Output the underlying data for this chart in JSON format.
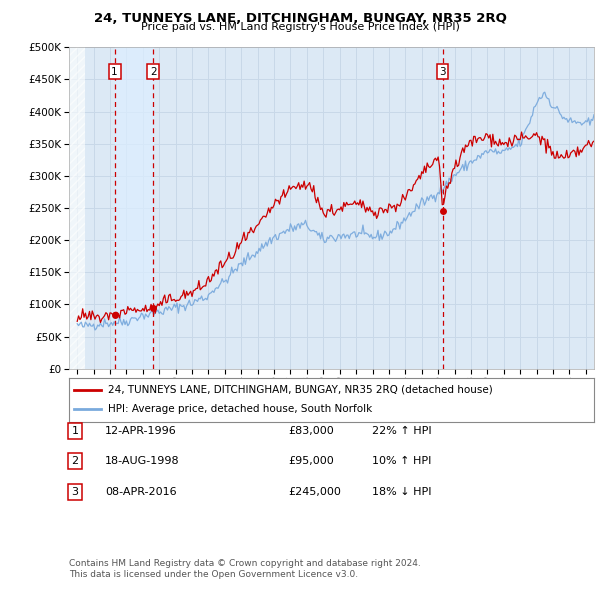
{
  "title": "24, TUNNEYS LANE, DITCHINGHAM, BUNGAY, NR35 2RQ",
  "subtitle": "Price paid vs. HM Land Registry's House Price Index (HPI)",
  "bg_color": "#dce9f5",
  "plot_bg": "#dce9f5",
  "grid_color": "#c8d8e8",
  "sale_color": "#cc0000",
  "hpi_color": "#7aaadd",
  "sale_label": "24, TUNNEYS LANE, DITCHINGHAM, BUNGAY, NR35 2RQ (detached house)",
  "hpi_label": "HPI: Average price, detached house, South Norfolk",
  "transactions": [
    {
      "num": 1,
      "date": "12-APR-1996",
      "price": 83000,
      "year": 1996.28,
      "pct": "22%",
      "dir": "↑"
    },
    {
      "num": 2,
      "date": "18-AUG-1998",
      "price": 95000,
      "year": 1998.63,
      "pct": "10%",
      "dir": "↑"
    },
    {
      "num": 3,
      "date": "08-APR-2016",
      "price": 245000,
      "year": 2016.27,
      "pct": "18%",
      "dir": "↓"
    }
  ],
  "footer1": "Contains HM Land Registry data © Crown copyright and database right 2024.",
  "footer2": "This data is licensed under the Open Government Licence v3.0.",
  "ylim": [
    0,
    500000
  ],
  "yticks": [
    0,
    50000,
    100000,
    150000,
    200000,
    250000,
    300000,
    350000,
    400000,
    450000,
    500000
  ],
  "xmin": 1993.5,
  "xmax": 2025.5,
  "hatch_end": 1994.5,
  "shade_band_color": "#ddeeff",
  "hpi_anchors_yr": [
    1994.0,
    1995.0,
    1996.0,
    1997.0,
    1998.0,
    1999.0,
    2000.0,
    2001.0,
    2002.0,
    2003.0,
    2004.0,
    2005.0,
    2006.0,
    2007.0,
    2008.0,
    2009.0,
    2010.0,
    2011.0,
    2012.0,
    2013.0,
    2014.0,
    2015.0,
    2016.0,
    2017.0,
    2018.0,
    2019.0,
    2020.0,
    2021.0,
    2021.5,
    2022.0,
    2022.5,
    2023.0,
    2024.0,
    2025.0,
    2025.5
  ],
  "hpi_anchors_val": [
    68000,
    70000,
    73000,
    76000,
    80000,
    87000,
    97000,
    105000,
    118000,
    140000,
    165000,
    188000,
    210000,
    228000,
    235000,
    210000,
    218000,
    220000,
    215000,
    220000,
    240000,
    262000,
    283000,
    308000,
    330000,
    348000,
    345000,
    360000,
    390000,
    425000,
    440000,
    420000,
    395000,
    395000,
    400000
  ],
  "sale_anchors_yr": [
    1994.0,
    1995.0,
    1996.0,
    1996.28,
    1997.0,
    1998.0,
    1998.63,
    1999.0,
    2000.0,
    2001.0,
    2002.0,
    2003.0,
    2004.0,
    2005.0,
    2006.0,
    2007.0,
    2008.0,
    2008.5,
    2009.0,
    2010.0,
    2011.0,
    2012.0,
    2013.0,
    2014.0,
    2015.0,
    2016.0,
    2016.27,
    2016.5,
    2017.0,
    2018.0,
    2019.0,
    2020.0,
    2021.0,
    2021.5,
    2022.0,
    2022.5,
    2023.0,
    2024.0,
    2025.0,
    2025.5
  ],
  "sale_anchors_val": [
    78000,
    80000,
    85000,
    83000,
    88000,
    92000,
    95000,
    100000,
    113000,
    120000,
    135000,
    162000,
    195000,
    220000,
    252000,
    278000,
    285000,
    270000,
    238000,
    248000,
    252000,
    248000,
    252000,
    270000,
    300000,
    330000,
    245000,
    280000,
    310000,
    348000,
    355000,
    340000,
    345000,
    345000,
    350000,
    340000,
    320000,
    310000,
    325000,
    330000
  ]
}
